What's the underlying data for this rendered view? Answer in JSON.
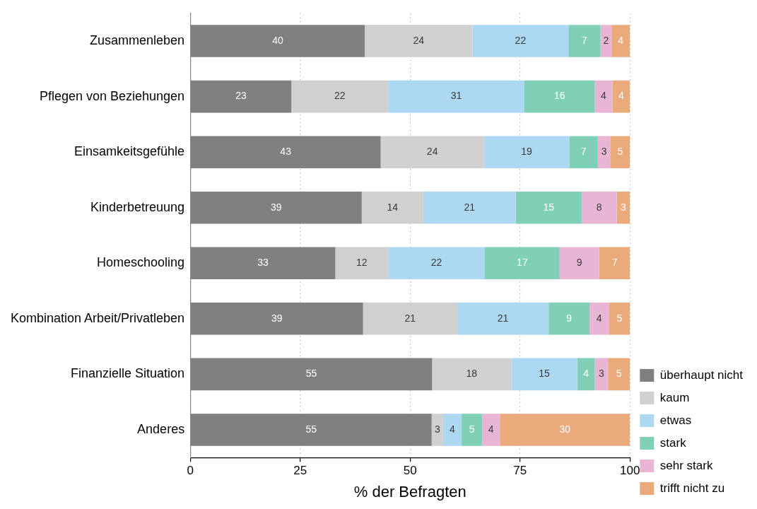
{
  "chart_data": {
    "type": "bar",
    "orientation": "horizontal",
    "stacked": true,
    "xlabel": "% der Befragten",
    "categories": [
      "Zusammenleben",
      "Pflegen von Beziehungen",
      "Einsamkeitsgefühle",
      "Kinderbetreuung",
      "Homeschooling",
      "Kombination Arbeit/Privatleben",
      "Finanzielle Situation",
      "Anderes"
    ],
    "series": [
      {
        "name": "überhaupt nicht",
        "color": "#808080",
        "values": [
          39.7,
          23,
          43.3,
          39,
          33,
          39.3,
          55,
          54.9
        ],
        "value_labels": [
          "40",
          "23",
          "43",
          "39",
          "33",
          "39",
          "55",
          "55"
        ]
      },
      {
        "name": "kaum",
        "color": "#d0d0d0",
        "values": [
          24.5,
          22,
          23.5,
          14,
          12,
          21.4,
          18,
          2.6
        ],
        "value_labels": [
          "24",
          "22",
          "24",
          "14",
          "12",
          "21",
          "18",
          "3"
        ]
      },
      {
        "name": "etwas",
        "color": "#add8f2",
        "values": [
          21.8,
          31,
          19.4,
          21,
          22,
          20.8,
          15,
          4.2
        ],
        "value_labels": [
          "22",
          "31",
          "19",
          "21",
          "22",
          "21",
          "15",
          "4"
        ]
      },
      {
        "name": "stark",
        "color": "#80d0b8",
        "values": [
          7.3,
          16,
          6.5,
          15,
          17,
          9.3,
          4,
          4.7
        ],
        "value_labels": [
          "7",
          "16",
          "7",
          "15",
          "17",
          "9",
          "4",
          "5"
        ]
      },
      {
        "name": "sehr stark",
        "color": "#e8b6d4",
        "values": [
          2.5,
          4,
          2.8,
          8,
          9,
          4.4,
          3,
          4.0
        ],
        "value_labels": [
          "2",
          "4",
          "3",
          "8",
          "9",
          "4",
          "3",
          "4"
        ]
      },
      {
        "name": "trifft nicht zu",
        "color": "#eaaa7c",
        "values": [
          4.2,
          4,
          4.5,
          3,
          7,
          4.8,
          5,
          29.6
        ],
        "value_labels": [
          "4",
          "4",
          "5",
          "3",
          "7",
          "5",
          "5",
          "30"
        ]
      }
    ],
    "xlim": [
      0,
      100
    ],
    "xticks": [
      0,
      25,
      50,
      75,
      100
    ],
    "grid": "x",
    "legend": "bottom right"
  }
}
